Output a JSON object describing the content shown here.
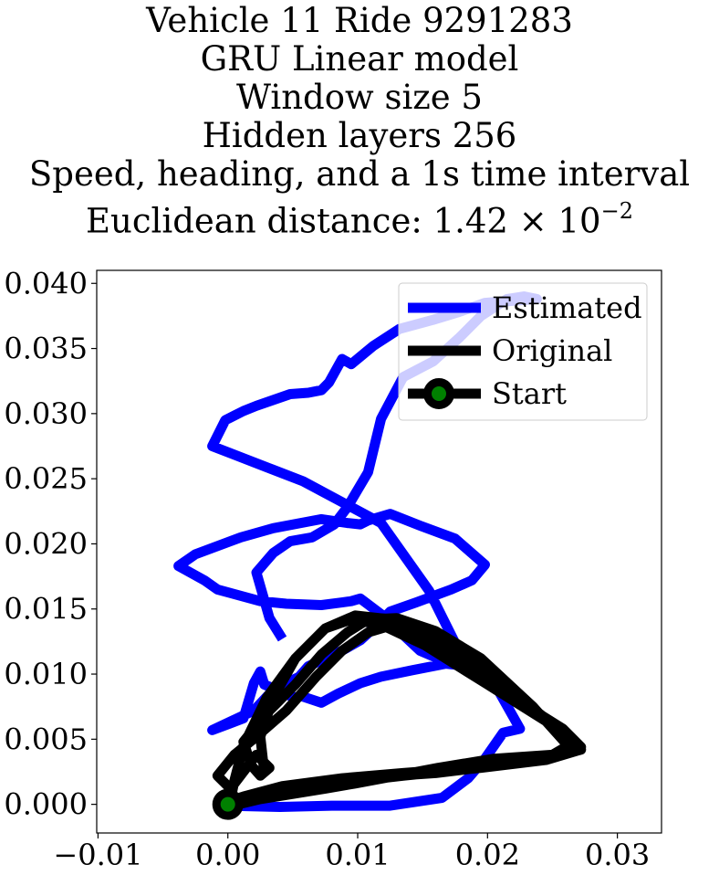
{
  "chart_data": {
    "type": "line",
    "title": [
      "Vehicle 11 Ride 9291283",
      "GRU Linear model",
      "Window size 5",
      "Hidden layers 256",
      "Speed, heading, and a 1s time interval"
    ],
    "title_metric": {
      "prefix": "Euclidean distance: 1.42",
      "times": "×",
      "base": "10",
      "exponent": "−2"
    },
    "xlabel": "",
    "ylabel": "",
    "xlim": [
      -0.0101,
      0.0334
    ],
    "ylim": [
      -0.0022,
      0.041
    ],
    "x_ticks": [
      -0.01,
      0.0,
      0.01,
      0.02,
      0.03
    ],
    "x_tick_labels": [
      "−0.01",
      "0.00",
      "0.01",
      "0.02",
      "0.03"
    ],
    "y_ticks": [
      0.0,
      0.005,
      0.01,
      0.015,
      0.02,
      0.025,
      0.03,
      0.035,
      0.04
    ],
    "y_tick_labels": [
      "0.000",
      "0.005",
      "0.010",
      "0.015",
      "0.020",
      "0.025",
      "0.030",
      "0.035",
      "0.040"
    ],
    "grid": false,
    "legend_position": "top-right",
    "colors": {
      "estimated": "#0000ff",
      "original": "#000000",
      "start_marker": "#008000"
    },
    "series": [
      {
        "name": "Estimated",
        "color": "#0000ff",
        "x": [
          0.0,
          0.004,
          0.008,
          0.0125,
          0.0165,
          0.0185,
          0.0198,
          0.0212,
          0.0225,
          0.0208,
          0.0195,
          0.0168,
          0.0142,
          0.0118,
          0.0102,
          0.0085,
          0.0072,
          0.0057,
          0.005,
          0.0045,
          0.0035,
          0.0028,
          0.0025,
          0.002,
          0.0012,
          -0.0012,
          0.002,
          0.0035,
          0.0055,
          0.0062,
          0.0075,
          0.0088,
          0.0102,
          0.0112,
          0.0125,
          0.0145,
          0.0172,
          0.0188,
          0.0198,
          0.0175,
          0.0148,
          0.0125,
          0.0108,
          0.0102,
          0.0092,
          0.0072,
          0.0035,
          0.001,
          -0.0025,
          -0.0038,
          -0.0018,
          -0.0008,
          0.0025,
          0.0045,
          0.0072,
          0.0088,
          0.0095,
          0.0102,
          0.0118,
          0.0148,
          0.0162,
          0.0175,
          0.0192,
          0.0188,
          0.0175,
          0.0155,
          0.0118,
          0.0058,
          0.0032,
          -0.0012,
          -0.0002,
          0.0012,
          0.0022,
          0.0048,
          0.0062,
          0.0072,
          0.0078,
          0.0088,
          0.0095,
          0.0112,
          0.0132,
          0.0158,
          0.0178,
          0.0198,
          0.0238,
          0.0228,
          0.0215,
          0.0195,
          0.0178,
          0.0158,
          0.0135,
          0.0118,
          0.0108,
          0.0092,
          0.0082,
          0.0065,
          0.0048,
          0.0035,
          0.0028,
          0.0022,
          0.0032,
          0.0042
        ],
        "y": [
          -0.0001,
          -0.0002,
          -0.0001,
          -0.0001,
          0.0005,
          0.002,
          0.0035,
          0.0055,
          0.0058,
          0.0088,
          0.0105,
          0.0108,
          0.0103,
          0.0098,
          0.0093,
          0.0085,
          0.0078,
          0.0083,
          0.0082,
          0.0085,
          0.0089,
          0.0092,
          0.0102,
          0.0093,
          0.0066,
          0.0057,
          0.0072,
          0.0088,
          0.0098,
          0.0106,
          0.0112,
          0.0118,
          0.0126,
          0.0135,
          0.0148,
          0.0155,
          0.0165,
          0.0172,
          0.0184,
          0.0204,
          0.0214,
          0.0223,
          0.0218,
          0.0215,
          0.0216,
          0.0219,
          0.0212,
          0.0205,
          0.0192,
          0.0183,
          0.0172,
          0.0165,
          0.0156,
          0.0154,
          0.0153,
          0.0155,
          0.0156,
          0.0158,
          0.0146,
          0.0118,
          0.0112,
          0.0108,
          0.0106,
          0.0112,
          0.0124,
          0.0164,
          0.0216,
          0.0248,
          0.0258,
          0.0275,
          0.0295,
          0.0302,
          0.0306,
          0.0315,
          0.0316,
          0.0318,
          0.0324,
          0.0342,
          0.0338,
          0.0352,
          0.0365,
          0.0372,
          0.0378,
          0.0385,
          0.0388,
          0.039,
          0.0388,
          0.0375,
          0.0358,
          0.034,
          0.0328,
          0.0296,
          0.0255,
          0.0228,
          0.0215,
          0.0205,
          0.0202,
          0.0193,
          0.0185,
          0.0178,
          0.0143,
          0.0127
        ]
      },
      {
        "name": "Original",
        "color": "#000000",
        "x": [
          0.0,
          0.004,
          0.01,
          0.016,
          0.021,
          0.0255,
          0.0268,
          0.0255,
          0.022,
          0.0185,
          0.0155,
          0.0128,
          0.0108,
          0.0088,
          0.0068,
          0.0045,
          0.0022,
          0.0005,
          -0.0008,
          0.0002,
          0.0022,
          0.0032,
          0.0025,
          0.0018,
          0.0012,
          0.0028,
          0.0052,
          0.0072,
          0.0092,
          0.0108,
          0.013,
          0.016,
          0.0195,
          0.0235,
          0.0262,
          0.025,
          0.0205,
          0.0162,
          0.013,
          0.0098,
          0.0075,
          0.005,
          0.0025,
          0.0008,
          0.0002,
          0.0032,
          0.0082,
          0.0135,
          0.0195,
          0.0245,
          0.0272,
          0.0248,
          0.02,
          0.0152,
          0.0118,
          0.0095,
          0.0075,
          0.0052,
          0.003,
          0.0012,
          0.0005,
          0.0002,
          0.0012,
          0.0042,
          0.0088,
          0.0135,
          0.0188,
          0.0242,
          0.0272,
          0.0258,
          0.021,
          0.0165,
          0.0125,
          0.0098,
          0.0075,
          0.0052,
          0.0035,
          0.0025,
          0.0028
        ],
        "y": [
          0.0,
          0.0012,
          0.002,
          0.0024,
          0.003,
          0.0038,
          0.0043,
          0.0058,
          0.0085,
          0.0112,
          0.0132,
          0.0138,
          0.0132,
          0.0118,
          0.0098,
          0.0072,
          0.0052,
          0.0038,
          0.0022,
          0.0012,
          0.0038,
          0.0028,
          0.0022,
          0.003,
          0.0048,
          0.0068,
          0.0092,
          0.0115,
          0.0132,
          0.0142,
          0.0143,
          0.0133,
          0.0112,
          0.0075,
          0.0045,
          0.0038,
          0.0035,
          0.0028,
          0.0022,
          0.0016,
          0.0012,
          0.0008,
          0.0004,
          0.0,
          0.0002,
          0.0008,
          0.0016,
          0.0022,
          0.0028,
          0.0034,
          0.0042,
          0.0062,
          0.0092,
          0.0122,
          0.0138,
          0.0142,
          0.0135,
          0.0112,
          0.0082,
          0.0045,
          0.0018,
          0.0003,
          0.0006,
          0.0014,
          0.002,
          0.0024,
          0.0028,
          0.0034,
          0.0044,
          0.0058,
          0.0088,
          0.0122,
          0.0142,
          0.0145,
          0.0135,
          0.0112,
          0.0082,
          0.0052,
          0.0025
        ]
      },
      {
        "name": "Start",
        "marker": true,
        "x": [
          0.0
        ],
        "y": [
          0.0
        ]
      }
    ]
  }
}
